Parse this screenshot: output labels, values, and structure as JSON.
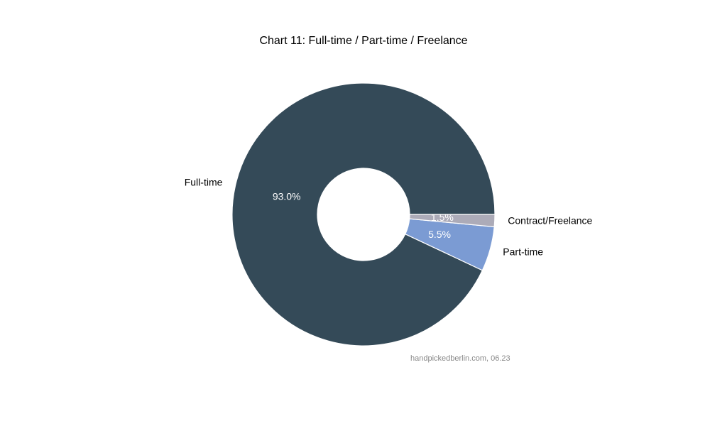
{
  "chart_data": {
    "type": "donut",
    "title": "Chart 11: Full-time / Part-time / Freelance",
    "categories": [
      "Full-time",
      "Part-time",
      "Contract/Freelance"
    ],
    "values": [
      93.0,
      5.5,
      1.5
    ],
    "value_labels": [
      "93.0%",
      "5.5%",
      "1.5%"
    ],
    "colors": [
      "#344a58",
      "#7b9bd3",
      "#acabb8"
    ],
    "source": "handpickedberlin.com, 06.23"
  }
}
